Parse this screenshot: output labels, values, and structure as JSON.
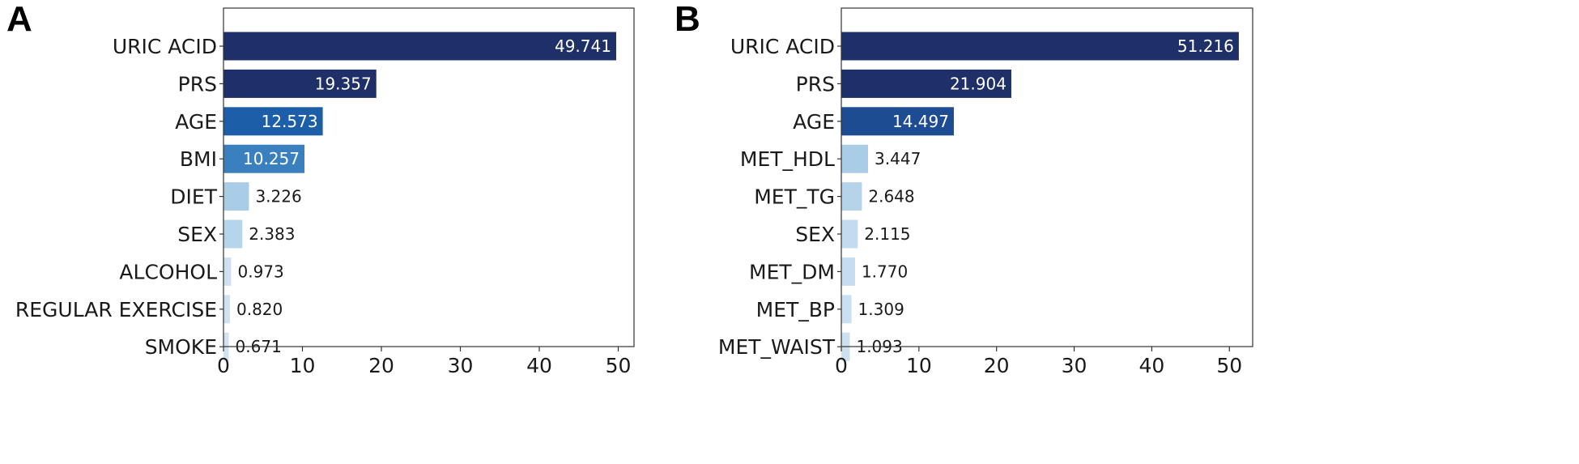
{
  "chart_data": [
    {
      "panel": "A",
      "type": "bar",
      "orientation": "horizontal",
      "categories": [
        "URIC ACID",
        "PRS",
        "AGE",
        "BMI",
        "DIET",
        "SEX",
        "ALCOHOL",
        "REGULAR EXERCISE",
        "SMOKE"
      ],
      "values": [
        49.741,
        19.357,
        12.573,
        10.257,
        3.226,
        2.383,
        0.973,
        0.82,
        0.671
      ],
      "value_labels": [
        "49.741",
        "19.357",
        "12.573",
        "10.257",
        "3.226",
        "2.383",
        "0.973",
        "0.820",
        "0.671"
      ],
      "colors": [
        "#1f3068",
        "#1f3068",
        "#1c5fa8",
        "#3a80bf",
        "#a9cde6",
        "#b7d5ea",
        "#cfe0f0",
        "#d0e1f1",
        "#d2e2f2"
      ],
      "xlim": [
        0,
        52
      ],
      "xticks": [
        0,
        10,
        20,
        30,
        40,
        50
      ],
      "xlabel": "",
      "ylabel": "",
      "title": "",
      "grid": false
    },
    {
      "panel": "B",
      "type": "bar",
      "orientation": "horizontal",
      "categories": [
        "URIC ACID",
        "PRS",
        "AGE",
        "MET_HDL",
        "MET_TG",
        "SEX",
        "MET_DM",
        "MET_BP",
        "MET_WAIST"
      ],
      "values": [
        51.216,
        21.904,
        14.497,
        3.447,
        2.648,
        2.115,
        1.77,
        1.309,
        1.093
      ],
      "value_labels": [
        "51.216",
        "21.904",
        "14.497",
        "3.447",
        "2.648",
        "2.115",
        "1.770",
        "1.309",
        "1.093"
      ],
      "colors": [
        "#1f3068",
        "#1f3068",
        "#1e4c92",
        "#a9cde6",
        "#b5d4ea",
        "#c2dbee",
        "#c6ddef",
        "#cadff0",
        "#cde0f0"
      ],
      "xlim": [
        0,
        53
      ],
      "xticks": [
        0,
        10,
        20,
        30,
        40,
        50
      ],
      "xlabel": "",
      "ylabel": "",
      "title": "",
      "grid": false
    }
  ]
}
